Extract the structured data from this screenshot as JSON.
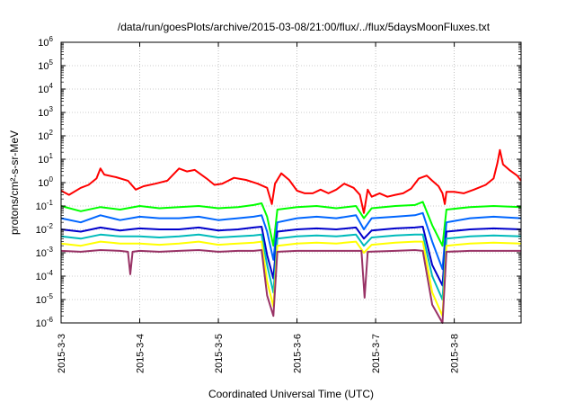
{
  "chart_data": {
    "type": "line",
    "title": "/data/run/goesPlots/archive/2015-03-08/21:00/flux/../flux/5daysMoonFluxes.txt",
    "xlabel": "Coordinated Universal Time (UTC)",
    "ylabel": "protons/cm²-s-sr-MeV",
    "yscale": "log",
    "ylim": [
      1e-06,
      1000000.0
    ],
    "xlim_days": [
      0,
      5.85
    ],
    "grid": true,
    "x_ticks": [
      {
        "label": "2015-3-3",
        "day": 0
      },
      {
        "label": "2015-3-4",
        "day": 1
      },
      {
        "label": "2015-3-5",
        "day": 2
      },
      {
        "label": "2015-3-6",
        "day": 3
      },
      {
        "label": "2015-3-7",
        "day": 4
      },
      {
        "label": "2015-3-8",
        "day": 5
      }
    ],
    "y_ticks": [
      {
        "exp": -6,
        "label": "10",
        "sup": "-6"
      },
      {
        "exp": -5,
        "label": "10",
        "sup": "-5"
      },
      {
        "exp": -4,
        "label": "10",
        "sup": "-4"
      },
      {
        "exp": -3,
        "label": "10",
        "sup": "-3"
      },
      {
        "exp": -2,
        "label": "10",
        "sup": "-2"
      },
      {
        "exp": -1,
        "label": "10",
        "sup": "-1"
      },
      {
        "exp": 0,
        "label": "10",
        "sup": "0"
      },
      {
        "exp": 1,
        "label": "10",
        "sup": "1"
      },
      {
        "exp": 2,
        "label": "10",
        "sup": "2"
      },
      {
        "exp": 3,
        "label": "10",
        "sup": "3"
      },
      {
        "exp": 4,
        "label": "10",
        "sup": "4"
      },
      {
        "exp": 5,
        "label": "10",
        "sup": "5"
      },
      {
        "exp": 6,
        "label": "10",
        "sup": "6"
      }
    ],
    "series": [
      {
        "color": "#ff0000",
        "points": [
          [
            0,
            0.45
          ],
          [
            0.1,
            0.3
          ],
          [
            0.25,
            0.6
          ],
          [
            0.35,
            0.8
          ],
          [
            0.45,
            1.5
          ],
          [
            0.5,
            4
          ],
          [
            0.55,
            2.2
          ],
          [
            0.7,
            1.7
          ],
          [
            0.85,
            1.2
          ],
          [
            0.95,
            0.5
          ],
          [
            1.05,
            0.7
          ],
          [
            1.2,
            0.9
          ],
          [
            1.35,
            1.2
          ],
          [
            1.5,
            4
          ],
          [
            1.6,
            3
          ],
          [
            1.7,
            3.5
          ],
          [
            1.85,
            1.5
          ],
          [
            1.95,
            0.8
          ],
          [
            2.05,
            0.9
          ],
          [
            2.2,
            1.6
          ],
          [
            2.35,
            1.3
          ],
          [
            2.5,
            0.9
          ],
          [
            2.62,
            0.6
          ],
          [
            2.68,
            0.12
          ],
          [
            2.72,
            0.9
          ],
          [
            2.8,
            2.5
          ],
          [
            2.9,
            1.3
          ],
          [
            3.0,
            0.45
          ],
          [
            3.1,
            0.35
          ],
          [
            3.2,
            0.35
          ],
          [
            3.3,
            0.5
          ],
          [
            3.4,
            0.35
          ],
          [
            3.5,
            0.5
          ],
          [
            3.6,
            0.9
          ],
          [
            3.72,
            0.6
          ],
          [
            3.8,
            0.3
          ],
          [
            3.85,
            0.05
          ],
          [
            3.9,
            0.5
          ],
          [
            3.95,
            0.25
          ],
          [
            4.05,
            0.35
          ],
          [
            4.15,
            0.25
          ],
          [
            4.25,
            0.3
          ],
          [
            4.35,
            0.35
          ],
          [
            4.45,
            0.55
          ],
          [
            4.55,
            1.5
          ],
          [
            4.65,
            2
          ],
          [
            4.72,
            1.2
          ],
          [
            4.8,
            0.7
          ],
          [
            4.85,
            0.35
          ],
          [
            4.88,
            0.12
          ],
          [
            4.9,
            0.4
          ],
          [
            5.0,
            0.4
          ],
          [
            5.12,
            0.35
          ],
          [
            5.25,
            0.5
          ],
          [
            5.4,
            0.8
          ],
          [
            5.5,
            1.5
          ],
          [
            5.55,
            7
          ],
          [
            5.58,
            25
          ],
          [
            5.62,
            6
          ],
          [
            5.7,
            3.5
          ],
          [
            5.8,
            2
          ],
          [
            5.85,
            1.2
          ]
        ]
      },
      {
        "color": "#00ff00",
        "points": [
          [
            0,
            0.1
          ],
          [
            0.25,
            0.06
          ],
          [
            0.5,
            0.09
          ],
          [
            0.75,
            0.07
          ],
          [
            1.0,
            0.1
          ],
          [
            1.25,
            0.08
          ],
          [
            1.5,
            0.09
          ],
          [
            1.75,
            0.1
          ],
          [
            2.0,
            0.08
          ],
          [
            2.25,
            0.09
          ],
          [
            2.45,
            0.11
          ],
          [
            2.55,
            0.13
          ],
          [
            2.62,
            0.035
          ],
          [
            2.7,
            0.002
          ],
          [
            2.75,
            0.07
          ],
          [
            3.0,
            0.09
          ],
          [
            3.25,
            0.1
          ],
          [
            3.5,
            0.08
          ],
          [
            3.75,
            0.1
          ],
          [
            3.85,
            0.03
          ],
          [
            3.95,
            0.08
          ],
          [
            4.25,
            0.1
          ],
          [
            4.5,
            0.11
          ],
          [
            4.6,
            0.15
          ],
          [
            4.72,
            0.015
          ],
          [
            4.85,
            0.002
          ],
          [
            4.9,
            0.07
          ],
          [
            5.2,
            0.09
          ],
          [
            5.5,
            0.1
          ],
          [
            5.85,
            0.09
          ]
        ]
      },
      {
        "color": "#0066ff",
        "points": [
          [
            0,
            0.03
          ],
          [
            0.25,
            0.02
          ],
          [
            0.5,
            0.04
          ],
          [
            0.75,
            0.025
          ],
          [
            1.0,
            0.035
          ],
          [
            1.25,
            0.03
          ],
          [
            1.5,
            0.03
          ],
          [
            1.75,
            0.035
          ],
          [
            2.0,
            0.025
          ],
          [
            2.25,
            0.03
          ],
          [
            2.45,
            0.035
          ],
          [
            2.55,
            0.04
          ],
          [
            2.62,
            0.008
          ],
          [
            2.7,
            0.0005
          ],
          [
            2.75,
            0.02
          ],
          [
            3.0,
            0.03
          ],
          [
            3.25,
            0.035
          ],
          [
            3.5,
            0.03
          ],
          [
            3.75,
            0.04
          ],
          [
            3.85,
            0.01
          ],
          [
            3.95,
            0.03
          ],
          [
            4.25,
            0.035
          ],
          [
            4.5,
            0.04
          ],
          [
            4.6,
            0.05
          ],
          [
            4.72,
            0.003
          ],
          [
            4.85,
            0.0002
          ],
          [
            4.9,
            0.02
          ],
          [
            5.2,
            0.03
          ],
          [
            5.5,
            0.035
          ],
          [
            5.85,
            0.03
          ]
        ]
      },
      {
        "color": "#0000cc",
        "points": [
          [
            0,
            0.01
          ],
          [
            0.25,
            0.008
          ],
          [
            0.5,
            0.012
          ],
          [
            0.75,
            0.009
          ],
          [
            1.0,
            0.011
          ],
          [
            1.25,
            0.01
          ],
          [
            1.5,
            0.01
          ],
          [
            1.75,
            0.012
          ],
          [
            2.0,
            0.009
          ],
          [
            2.25,
            0.01
          ],
          [
            2.45,
            0.012
          ],
          [
            2.55,
            0.013
          ],
          [
            2.62,
            0.0008
          ],
          [
            2.7,
            8e-05
          ],
          [
            2.75,
            0.008
          ],
          [
            3.0,
            0.01
          ],
          [
            3.25,
            0.011
          ],
          [
            3.5,
            0.01
          ],
          [
            3.75,
            0.012
          ],
          [
            3.85,
            0.004
          ],
          [
            3.95,
            0.009
          ],
          [
            4.25,
            0.011
          ],
          [
            4.5,
            0.012
          ],
          [
            4.6,
            0.013
          ],
          [
            4.72,
            0.0003
          ],
          [
            4.85,
            4e-05
          ],
          [
            4.9,
            0.008
          ],
          [
            5.2,
            0.01
          ],
          [
            5.5,
            0.011
          ],
          [
            5.85,
            0.01
          ]
        ]
      },
      {
        "color": "#00bbbb",
        "points": [
          [
            0,
            0.005
          ],
          [
            0.25,
            0.004
          ],
          [
            0.5,
            0.006
          ],
          [
            0.75,
            0.005
          ],
          [
            1.0,
            0.005
          ],
          [
            1.25,
            0.0045
          ],
          [
            1.5,
            0.005
          ],
          [
            1.75,
            0.006
          ],
          [
            2.0,
            0.0045
          ],
          [
            2.25,
            0.005
          ],
          [
            2.45,
            0.0055
          ],
          [
            2.55,
            0.006
          ],
          [
            2.62,
            0.0003
          ],
          [
            2.7,
            2e-05
          ],
          [
            2.75,
            0.004
          ],
          [
            3.0,
            0.005
          ],
          [
            3.25,
            0.0055
          ],
          [
            3.5,
            0.005
          ],
          [
            3.75,
            0.006
          ],
          [
            3.85,
            0.002
          ],
          [
            3.95,
            0.0045
          ],
          [
            4.25,
            0.0055
          ],
          [
            4.5,
            0.006
          ],
          [
            4.6,
            0.006
          ],
          [
            4.72,
            0.0001
          ],
          [
            4.85,
            1e-05
          ],
          [
            4.9,
            0.004
          ],
          [
            5.2,
            0.005
          ],
          [
            5.5,
            0.0055
          ],
          [
            5.85,
            0.005
          ]
        ]
      },
      {
        "color": "#ffff00",
        "points": [
          [
            0,
            0.0025
          ],
          [
            0.25,
            0.002
          ],
          [
            0.5,
            0.003
          ],
          [
            0.75,
            0.0025
          ],
          [
            1.0,
            0.0025
          ],
          [
            1.25,
            0.0022
          ],
          [
            1.5,
            0.0025
          ],
          [
            1.75,
            0.003
          ],
          [
            2.0,
            0.0022
          ],
          [
            2.25,
            0.0025
          ],
          [
            2.45,
            0.0027
          ],
          [
            2.55,
            0.003
          ],
          [
            2.62,
            6e-05
          ],
          [
            2.7,
            5e-06
          ],
          [
            2.75,
            0.002
          ],
          [
            3.0,
            0.0025
          ],
          [
            3.25,
            0.0027
          ],
          [
            3.5,
            0.0025
          ],
          [
            3.75,
            0.003
          ],
          [
            3.85,
            0.001
          ],
          [
            3.95,
            0.0022
          ],
          [
            4.25,
            0.0027
          ],
          [
            4.5,
            0.003
          ],
          [
            4.6,
            0.003
          ],
          [
            4.72,
            2e-05
          ],
          [
            4.85,
            2e-06
          ],
          [
            4.9,
            0.002
          ],
          [
            5.2,
            0.0025
          ],
          [
            5.5,
            0.0027
          ],
          [
            5.85,
            0.0025
          ]
        ]
      },
      {
        "color": "#993366",
        "points": [
          [
            0,
            0.0012
          ],
          [
            0.25,
            0.0011
          ],
          [
            0.5,
            0.0013
          ],
          [
            0.75,
            0.0012
          ],
          [
            0.85,
            0.0011
          ],
          [
            0.88,
            0.00012
          ],
          [
            0.91,
            0.0011
          ],
          [
            1.0,
            0.0012
          ],
          [
            1.25,
            0.0011
          ],
          [
            1.5,
            0.0012
          ],
          [
            1.75,
            0.0013
          ],
          [
            2.0,
            0.0011
          ],
          [
            2.25,
            0.0012
          ],
          [
            2.45,
            0.0012
          ],
          [
            2.55,
            0.0013
          ],
          [
            2.62,
            1.5e-05
          ],
          [
            2.7,
            2e-06
          ],
          [
            2.75,
            0.0011
          ],
          [
            3.0,
            0.0012
          ],
          [
            3.25,
            0.0012
          ],
          [
            3.5,
            0.0012
          ],
          [
            3.75,
            0.0012
          ],
          [
            3.82,
            0.0012
          ],
          [
            3.86,
            1.2e-05
          ],
          [
            3.9,
            0.0011
          ],
          [
            4.25,
            0.0012
          ],
          [
            4.5,
            0.0013
          ],
          [
            4.6,
            0.0012
          ],
          [
            4.72,
            6e-06
          ],
          [
            4.85,
            1e-06
          ],
          [
            4.9,
            0.0011
          ],
          [
            5.2,
            0.0012
          ],
          [
            5.5,
            0.0012
          ],
          [
            5.85,
            0.0012
          ]
        ]
      }
    ]
  }
}
